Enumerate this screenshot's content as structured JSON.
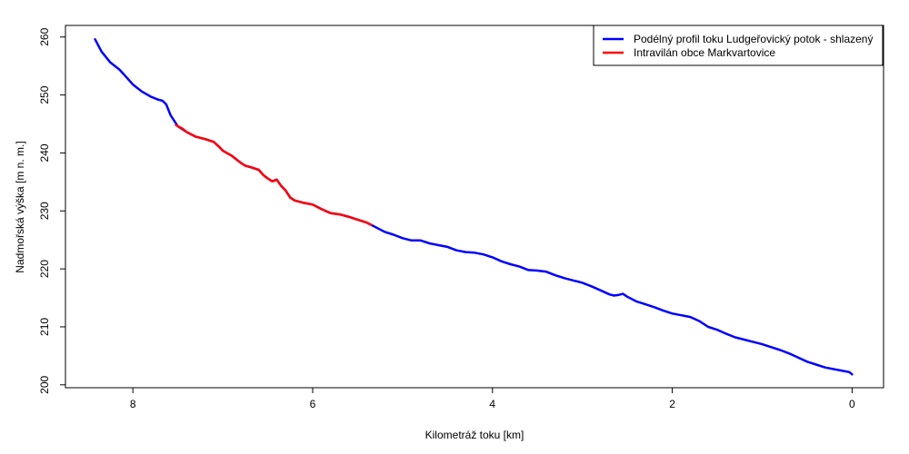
{
  "chart_data": {
    "type": "line",
    "title": "",
    "xlabel": "Kilometráž toku [km]",
    "ylabel": "Nadmořská výška [m n. m.]",
    "xlim": [
      8.75,
      -0.35
    ],
    "ylim": [
      199.5,
      262
    ],
    "x_reversed": true,
    "grid": false,
    "legend_position": "top-right",
    "x_ticks": [
      8,
      6,
      4,
      2,
      0
    ],
    "y_ticks": [
      200,
      210,
      220,
      230,
      240,
      250,
      260
    ],
    "series": [
      {
        "name": "Podélný profil toku Ludgeřovický potok - shlazený",
        "color": "#0000ff",
        "x": [
          8.42,
          8.35,
          8.25,
          8.15,
          8.08,
          8.0,
          7.9,
          7.8,
          7.72,
          7.67,
          7.63,
          7.58,
          7.5,
          7.4,
          7.3,
          7.2,
          7.1,
          7.05,
          7.0,
          6.9,
          6.8,
          6.75,
          6.7,
          6.6,
          6.55,
          6.5,
          6.45,
          6.4,
          6.35,
          6.3,
          6.25,
          6.2,
          6.15,
          6.1,
          6.0,
          5.9,
          5.8,
          5.7,
          5.6,
          5.5,
          5.4,
          5.35,
          5.3,
          5.2,
          5.1,
          5.0,
          4.9,
          4.8,
          4.7,
          4.6,
          4.5,
          4.4,
          4.3,
          4.2,
          4.1,
          4.0,
          3.9,
          3.8,
          3.7,
          3.6,
          3.5,
          3.4,
          3.3,
          3.2,
          3.1,
          3.0,
          2.9,
          2.8,
          2.7,
          2.65,
          2.6,
          2.55,
          2.5,
          2.4,
          2.3,
          2.2,
          2.1,
          2.0,
          1.9,
          1.8,
          1.7,
          1.6,
          1.5,
          1.4,
          1.3,
          1.2,
          1.1,
          1.0,
          0.9,
          0.8,
          0.7,
          0.6,
          0.5,
          0.4,
          0.3,
          0.2,
          0.1,
          0.03,
          0.0
        ],
        "y": [
          259.6,
          257.5,
          255.6,
          254.4,
          253.2,
          251.8,
          250.6,
          249.7,
          249.2,
          249.0,
          248.4,
          246.5,
          244.6,
          243.6,
          242.8,
          242.4,
          241.9,
          241.2,
          240.4,
          239.5,
          238.3,
          237.8,
          237.6,
          237.1,
          236.2,
          235.6,
          235.1,
          235.4,
          234.3,
          233.5,
          232.3,
          231.8,
          231.6,
          231.4,
          231.1,
          230.3,
          229.6,
          229.4,
          229.0,
          228.5,
          228.0,
          227.6,
          227.2,
          226.4,
          225.9,
          225.3,
          224.9,
          224.9,
          224.4,
          224.1,
          223.8,
          223.2,
          222.9,
          222.8,
          222.5,
          222.0,
          221.3,
          220.8,
          220.4,
          219.8,
          219.7,
          219.5,
          218.9,
          218.4,
          218.0,
          217.6,
          217.0,
          216.3,
          215.6,
          215.4,
          215.5,
          215.7,
          215.2,
          214.4,
          213.9,
          213.4,
          212.8,
          212.3,
          212.0,
          211.7,
          211.0,
          210.0,
          209.5,
          208.8,
          208.2,
          207.8,
          207.4,
          207.0,
          206.5,
          206.0,
          205.4,
          204.7,
          204.0,
          203.5,
          203.0,
          202.7,
          202.4,
          202.2,
          201.8
        ]
      },
      {
        "name": "Intravilán obce Markvartovice",
        "color": "#ff0000",
        "x": [
          7.52,
          7.45,
          7.4,
          7.3,
          7.2,
          7.1,
          7.05,
          7.0,
          6.9,
          6.8,
          6.75,
          6.7,
          6.6,
          6.55,
          6.5,
          6.45,
          6.4,
          6.35,
          6.3,
          6.25,
          6.2,
          6.15,
          6.1,
          6.0,
          5.9,
          5.8,
          5.7,
          5.6,
          5.5,
          5.4,
          5.35
        ],
        "y": [
          244.8,
          244.2,
          243.6,
          242.8,
          242.4,
          241.9,
          241.2,
          240.4,
          239.5,
          238.3,
          237.8,
          237.6,
          237.1,
          236.2,
          235.6,
          235.1,
          235.4,
          234.3,
          233.5,
          232.3,
          231.8,
          231.6,
          231.4,
          231.1,
          230.3,
          229.6,
          229.4,
          229.0,
          228.5,
          228.0,
          227.6
        ]
      }
    ]
  }
}
